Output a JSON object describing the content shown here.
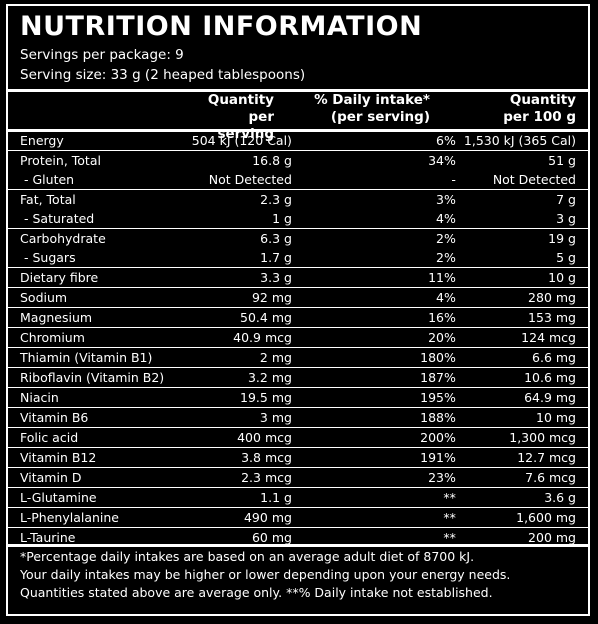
{
  "title": "NUTRITION INFORMATION",
  "servings_per_package": "Servings per package: 9",
  "serving_size": "Serving size: 33 g (2 heaped tablespoons)",
  "headers": {
    "per_serving_line1": "Quantity",
    "per_serving_line2": "per serving",
    "daily_line1": "% Daily intake*",
    "daily_line2": "(per serving)",
    "per100_line1": "Quantity",
    "per100_line2": "per 100 g"
  },
  "rows": [
    {
      "name": "Energy",
      "per_serving": "504 kJ (120 Cal)",
      "daily": "6%",
      "per100": "1,530 kJ (365 Cal)",
      "sub": false,
      "divider": true
    },
    {
      "name": "Protein, Total",
      "per_serving": "16.8 g",
      "daily": "34%",
      "per100": "51 g",
      "sub": false,
      "divider": true
    },
    {
      "name": "- Gluten",
      "per_serving": "Not Detected",
      "daily": "-",
      "per100": "Not Detected",
      "sub": true,
      "divider": false
    },
    {
      "name": "Fat, Total",
      "per_serving": "2.3 g",
      "daily": "3%",
      "per100": "7 g",
      "sub": false,
      "divider": true
    },
    {
      "name": "- Saturated",
      "per_serving": "1 g",
      "daily": "4%",
      "per100": "3 g",
      "sub": true,
      "divider": false
    },
    {
      "name": "Carbohydrate",
      "per_serving": "6.3 g",
      "daily": "2%",
      "per100": "19 g",
      "sub": false,
      "divider": true
    },
    {
      "name": "- Sugars",
      "per_serving": "1.7 g",
      "daily": "2%",
      "per100": "5 g",
      "sub": true,
      "divider": false
    },
    {
      "name": "Dietary fibre",
      "per_serving": "3.3 g",
      "daily": "11%",
      "per100": "10 g",
      "sub": false,
      "divider": true
    },
    {
      "name": "Sodium",
      "per_serving": "92 mg",
      "daily": "4%",
      "per100": "280 mg",
      "sub": false,
      "divider": true
    },
    {
      "name": "Magnesium",
      "per_serving": "50.4 mg",
      "daily": "16%",
      "per100": "153 mg",
      "sub": false,
      "divider": true
    },
    {
      "name": "Chromium",
      "per_serving": "40.9 mcg",
      "daily": "20%",
      "per100": "124 mcg",
      "sub": false,
      "divider": true
    },
    {
      "name": "Thiamin (Vitamin B1)",
      "per_serving": "2 mg",
      "daily": "180%",
      "per100": "6.6 mg",
      "sub": false,
      "divider": true
    },
    {
      "name": "Riboflavin (Vitamin B2)",
      "per_serving": "3.2 mg",
      "daily": "187%",
      "per100": "10.6 mg",
      "sub": false,
      "divider": true
    },
    {
      "name": "Niacin",
      "per_serving": "19.5 mg",
      "daily": "195%",
      "per100": "64.9 mg",
      "sub": false,
      "divider": true
    },
    {
      "name": "Vitamin B6",
      "per_serving": "3 mg",
      "daily": "188%",
      "per100": "10 mg",
      "sub": false,
      "divider": true
    },
    {
      "name": "Folic acid",
      "per_serving": "400 mcg",
      "daily": "200%",
      "per100": "1,300 mcg",
      "sub": false,
      "divider": true
    },
    {
      "name": "Vitamin B12",
      "per_serving": "3.8 mcg",
      "daily": "191%",
      "per100": "12.7 mcg",
      "sub": false,
      "divider": true
    },
    {
      "name": "Vitamin D",
      "per_serving": "2.3 mcg",
      "daily": "23%",
      "per100": "7.6 mcg",
      "sub": false,
      "divider": true
    },
    {
      "name": "L-Glutamine",
      "per_serving": "1.1 g",
      "daily": "**",
      "per100": "3.6 g",
      "sub": false,
      "divider": true
    },
    {
      "name": "L-Phenylalanine",
      "per_serving": "490 mg",
      "daily": "**",
      "per100": "1,600 mg",
      "sub": false,
      "divider": true
    },
    {
      "name": "L-Taurine",
      "per_serving": "60 mg",
      "daily": "**",
      "per100": "200 mg",
      "sub": false,
      "divider": true
    }
  ],
  "footnotes": [
    "*Percentage daily intakes are based on an average adult diet of 8700 kJ.",
    "Your daily intakes may be higher or lower depending upon your energy needs.",
    "Quantities stated above are average only. **% Daily intake not established."
  ]
}
